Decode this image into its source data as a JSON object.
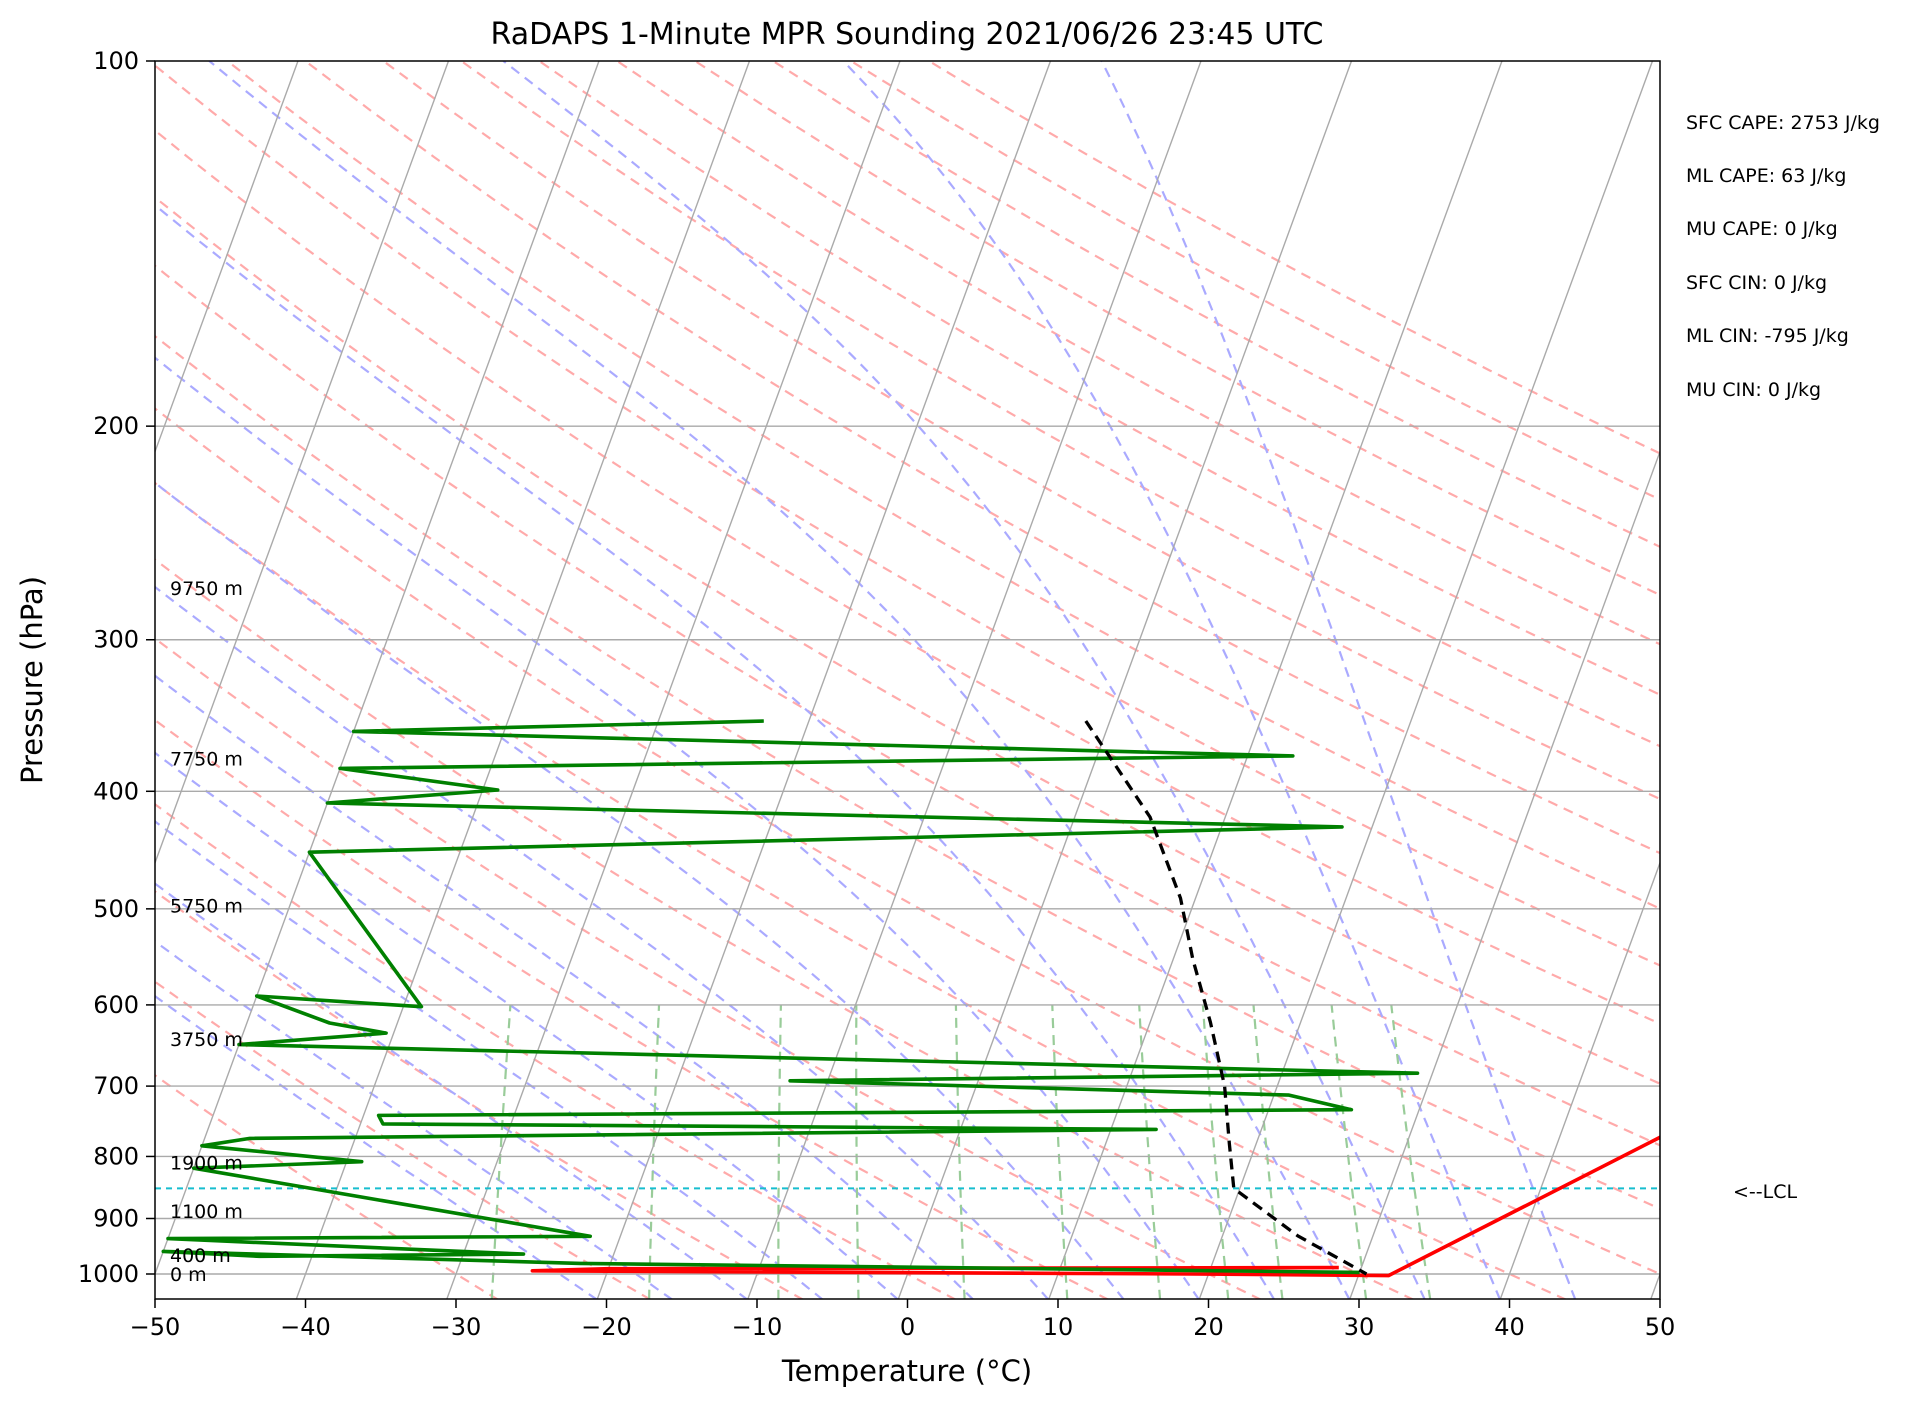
{
  "chart_data": {
    "type": "line",
    "subtype": "skew-T log-p",
    "title": "RaDAPS 1-Minute MPR Sounding 2021/06/26 23:45 UTC",
    "xlabel": "Temperature (°C)",
    "ylabel": "Pressure (hPa)",
    "xlim": [
      -50,
      50
    ],
    "ylim": [
      1050,
      100
    ],
    "y_scale": "log",
    "x_ticks": [
      "−50",
      "−40",
      "−30",
      "−20",
      "−10",
      "0",
      "10",
      "20",
      "30",
      "40",
      "50"
    ],
    "y_ticks": [
      "100",
      "200",
      "300",
      "400",
      "500",
      "600",
      "700",
      "800",
      "900",
      "1000"
    ],
    "grid": true,
    "series": [
      {
        "color": "#ff0000",
        "points": [
          [
            28.5,
            988
          ],
          [
            -20,
            990
          ],
          [
            -25,
            994
          ],
          [
            19,
            1000
          ],
          [
            32,
            1003
          ],
          [
            50,
            727
          ]
        ]
      },
      {
        "color": "#008000",
        "points": [
          [
            -23,
            350
          ],
          [
            -50,
            357
          ],
          [
            13,
            374
          ],
          [
            -50,
            383
          ],
          [
            -39,
            399
          ],
          [
            -50,
            409
          ],
          [
            18,
            428
          ],
          [
            -50,
            449
          ],
          [
            -38.8,
            602
          ],
          [
            -50,
            590
          ],
          [
            -44.5,
            621
          ],
          [
            -40.5,
            633
          ],
          [
            -50,
            647
          ],
          [
            29,
            683
          ],
          [
            -12.5,
            693
          ],
          [
            21,
            712
          ],
          [
            25.5,
            732
          ],
          [
            -39,
            740
          ],
          [
            -38.5,
            752
          ],
          [
            13,
            760
          ],
          [
            -47,
            773
          ],
          [
            -50,
            784
          ],
          [
            -39,
            808
          ],
          [
            -50,
            818
          ],
          [
            -22,
            931
          ],
          [
            -50,
            935
          ],
          [
            -26,
            963
          ],
          [
            -43.5,
            967
          ],
          [
            -50,
            958
          ],
          [
            -22,
            980
          ],
          [
            30,
            997
          ]
        ]
      },
      {
        "color": "#000000",
        "dash": true,
        "points": [
          [
            -1.6,
            350
          ],
          [
            5,
            420
          ],
          [
            9,
            490
          ],
          [
            11.3,
            550
          ],
          [
            14,
            620
          ],
          [
            16.5,
            700
          ],
          [
            18.2,
            780
          ],
          [
            19.6,
            850
          ],
          [
            25,
            930
          ],
          [
            30.5,
            1000
          ]
        ]
      }
    ],
    "lcl_pressure": 850,
    "annotations": [
      {
        "text": "9750 m",
        "p": 272
      },
      {
        "text": "7750 m",
        "p": 376
      },
      {
        "text": "5750 m",
        "p": 497
      },
      {
        "text": "3750 m",
        "p": 640
      },
      {
        "text": "1900 m",
        "p": 809
      },
      {
        "text": "1100 m",
        "p": 887
      },
      {
        "text": "400 m",
        "p": 965
      },
      {
        "text": "0 m",
        "p": 1000
      }
    ],
    "lcl_label": "<--LCL",
    "stats": [
      "SFC CAPE: 2753 J/kg",
      "ML CAPE: 63 J/kg",
      "MU CAPE: 0 J/kg",
      "SFC CIN: 0 J/kg",
      "ML CIN: -795 J/kg",
      "MU CIN: 0 J/kg"
    ],
    "colors": {
      "temperature": "#ff0000",
      "dewpoint": "#008000",
      "parcel": "#000000",
      "lcl_line": "#17becf",
      "dry_adiabats": "#ffaaaa",
      "moist_adiabats": "#aaaaff",
      "mixing_ratio": "#99cc99",
      "isotherms": "#aaaaaa",
      "isobars": "#aaaaaa"
    }
  }
}
